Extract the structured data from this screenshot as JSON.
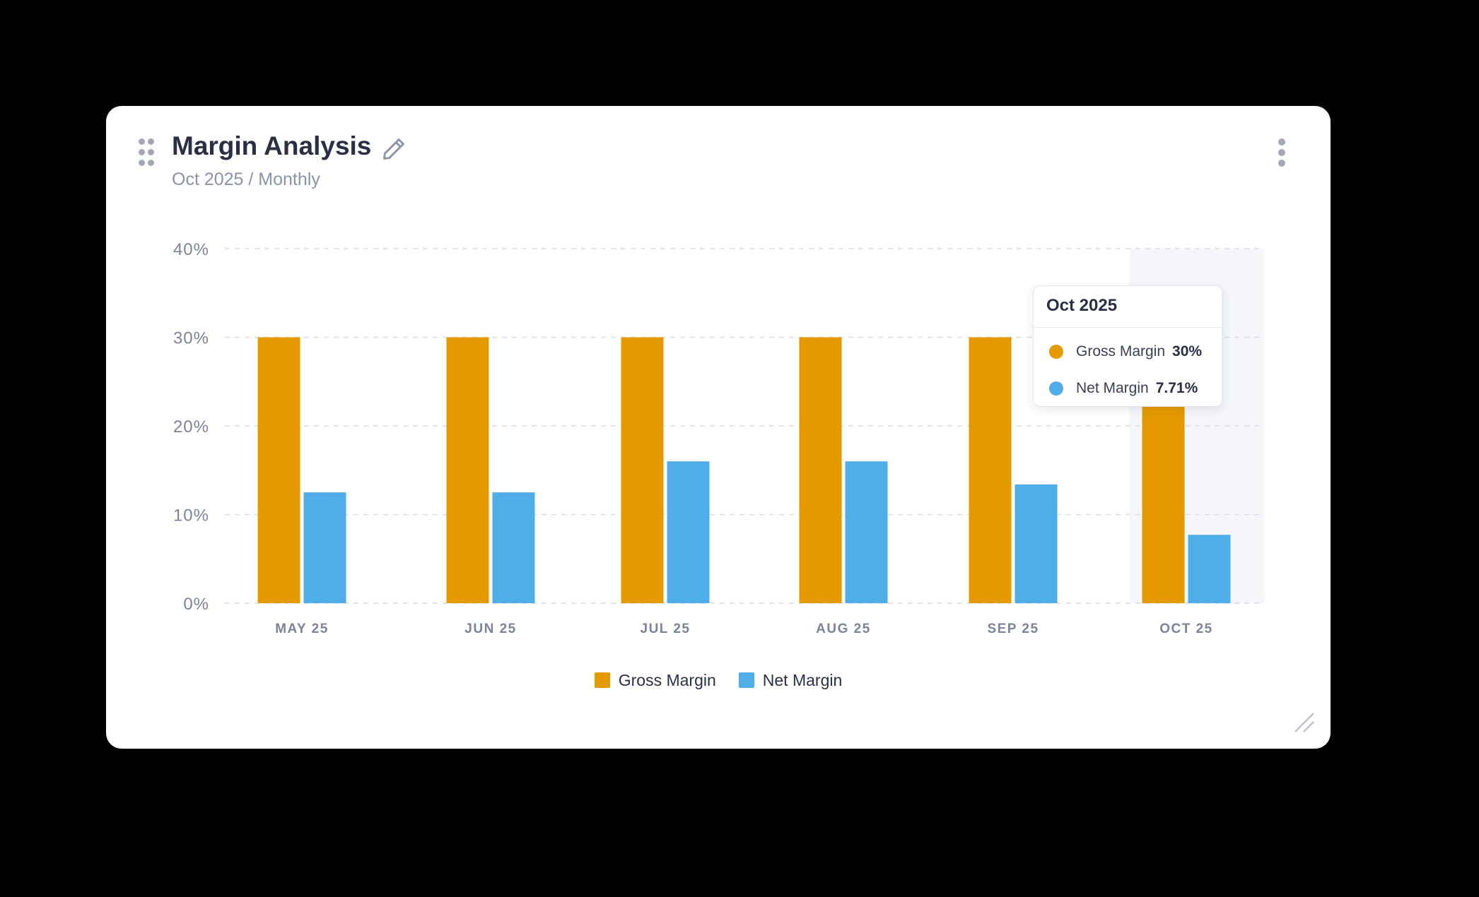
{
  "widget": {
    "title": "Margin Analysis",
    "subtitle": "Oct 2025 / Monthly",
    "icons": {
      "drag": "drag-handle-icon",
      "edit": "pencil-icon",
      "menu": "kebab-menu-icon",
      "resize": "resize-handle-icon"
    }
  },
  "tooltip": {
    "title": "Oct 2025",
    "rows": [
      {
        "name": "Gross Margin",
        "value": "30%",
        "color": "#E59A00"
      },
      {
        "name": "Net Margin",
        "value": "7.71%",
        "color": "#4FAEE8"
      }
    ]
  },
  "legend": [
    {
      "label": "Gross Margin",
      "color": "#E59A00"
    },
    {
      "label": "Net Margin",
      "color": "#4FAEE8"
    }
  ],
  "chart_data": {
    "type": "bar",
    "categories": [
      "MAY 25",
      "JUN 25",
      "JUL 25",
      "AUG 25",
      "SEP 25",
      "OCT 25"
    ],
    "series": [
      {
        "name": "Gross Margin",
        "color": "#E59A00",
        "values": [
          30,
          30,
          30,
          30,
          30,
          30
        ]
      },
      {
        "name": "Net Margin",
        "color": "#4FAEE8",
        "values": [
          12.5,
          12.5,
          16,
          16,
          13.4,
          7.71
        ]
      }
    ],
    "y_ticks": [
      "0%",
      "10%",
      "20%",
      "30%",
      "40%"
    ],
    "ylim": [
      0,
      40
    ],
    "grid": true,
    "highlighted_category": "OCT 25",
    "legend_position": "bottom-center"
  }
}
